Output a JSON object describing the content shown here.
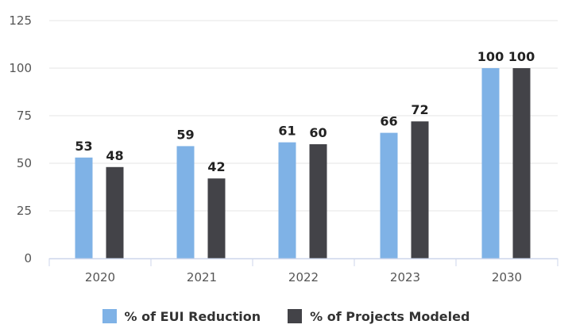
{
  "colors": {
    "eui": "#7fb2e6",
    "projects": "#434348",
    "grid": "#e6e6e6",
    "axis": "#ccd6eb"
  },
  "chart_data": {
    "type": "bar",
    "title": "",
    "xlabel": "",
    "ylabel": "",
    "categories": [
      "2020",
      "2021",
      "2022",
      "2023",
      "2030"
    ],
    "series": [
      {
        "name": "% of EUI Reduction",
        "values": [
          53,
          59,
          61,
          66,
          100
        ]
      },
      {
        "name": "% of Projects Modeled",
        "values": [
          48,
          42,
          60,
          72,
          100
        ]
      }
    ],
    "ylim": [
      0,
      125
    ],
    "yticks": [
      0,
      25,
      50,
      75,
      100,
      125
    ],
    "grid": true,
    "data_labels": true,
    "legend_position": "bottom-center"
  }
}
